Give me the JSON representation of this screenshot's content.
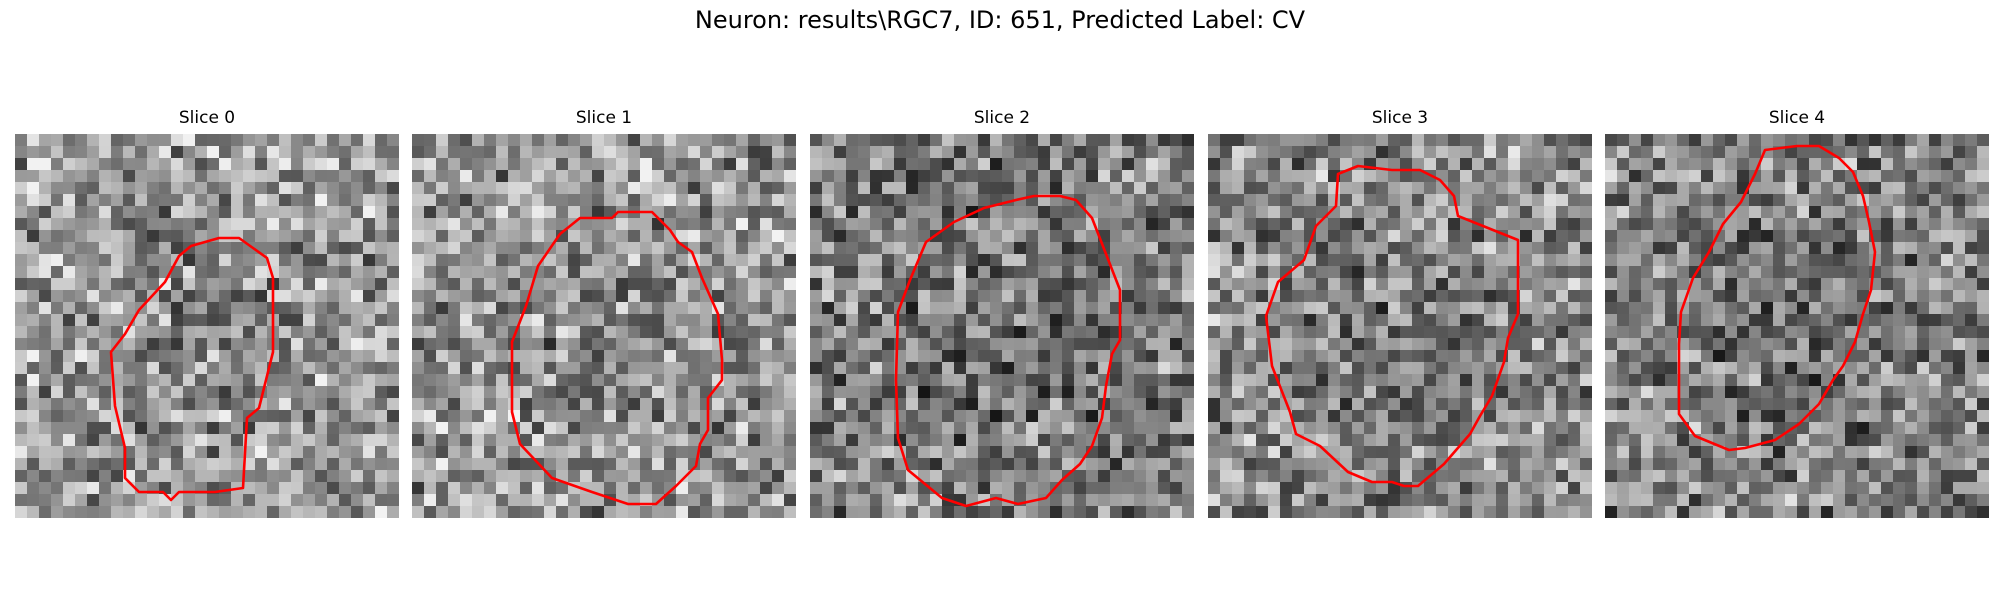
{
  "figure": {
    "title": "Neuron: results\\RGC7, ID: 651, Predicted Label: CV",
    "contour_color": "#ff0000"
  },
  "slices": [
    {
      "title": "Slice 0"
    },
    {
      "title": "Slice 1"
    },
    {
      "title": "Slice 2"
    },
    {
      "title": "Slice 3"
    },
    {
      "title": "Slice 4"
    }
  ]
}
